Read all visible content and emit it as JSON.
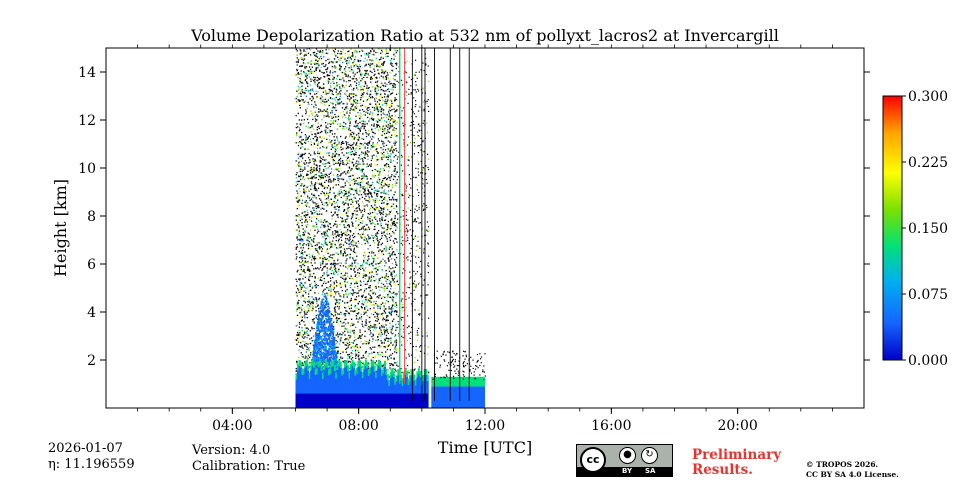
{
  "chart_data": {
    "type": "heatmap",
    "title": "Volume Depolarization Ratio at 532 nm of pollyxt_lacros2 at Invercargill",
    "xlabel": "Time [UTC]",
    "ylabel": "Height [km]",
    "xlim": [
      0,
      24
    ],
    "ylim": [
      0,
      15
    ],
    "x_ticks": [
      4,
      8,
      12,
      16,
      20
    ],
    "x_tick_labels": [
      "04:00",
      "08:00",
      "12:00",
      "16:00",
      "20:00"
    ],
    "y_ticks": [
      2,
      4,
      6,
      8,
      10,
      12,
      14
    ],
    "y_tick_labels": [
      "2",
      "4",
      "6",
      "8",
      "10",
      "12",
      "14"
    ],
    "colorbar": {
      "min": 0.0,
      "max": 0.3,
      "ticks": [
        0.0,
        0.075,
        0.15,
        0.225,
        0.3
      ],
      "tick_labels": [
        "0.000",
        "0.075",
        "0.150",
        "0.225",
        "0.300"
      ],
      "colormap": [
        "#0000c8",
        "#1565ff",
        "#00b0f0",
        "#00e07a",
        "#7be000",
        "#ffff00",
        "#ffa500",
        "#ff0000"
      ]
    },
    "data_coverage": {
      "start_hour": 6.0,
      "end_hour": 12.0
    },
    "layers": [
      {
        "name": "boundary layer",
        "start_hour": 6.0,
        "end_hour": 10.2,
        "top_km": 1.6,
        "value": 0.02
      },
      {
        "name": "aerosol plume",
        "start_hour": 6.4,
        "end_hour": 7.4,
        "top_km": 4.8,
        "value": 0.03
      },
      {
        "name": "low layer after gap",
        "start_hour": 10.3,
        "end_hour": 12.0,
        "top_km": 0.9,
        "value": 0.05
      },
      {
        "name": "noise above layer",
        "start_hour": 6.0,
        "end_hour": 9.2,
        "top_km": 15.0,
        "value": 0.12
      }
    ],
    "vertical_lines_hours": [
      9.7,
      10.0,
      10.1,
      10.4,
      10.9,
      11.2,
      11.5
    ],
    "annotations": {
      "date": "2026-01-07",
      "eta": "η: 11.196559",
      "version": "Version: 4.0",
      "calibration": "Calibration: True"
    }
  },
  "footer": {
    "preliminary_line1": "Preliminary",
    "preliminary_line2": "Results.",
    "preliminary_color": "#e8332f",
    "copyright_line1": "© TROPOS 2026.",
    "copyright_line2": "CC BY SA 4.0 License.",
    "license_badge": {
      "cc": "cc",
      "by": "BY",
      "sa": "SA"
    }
  }
}
